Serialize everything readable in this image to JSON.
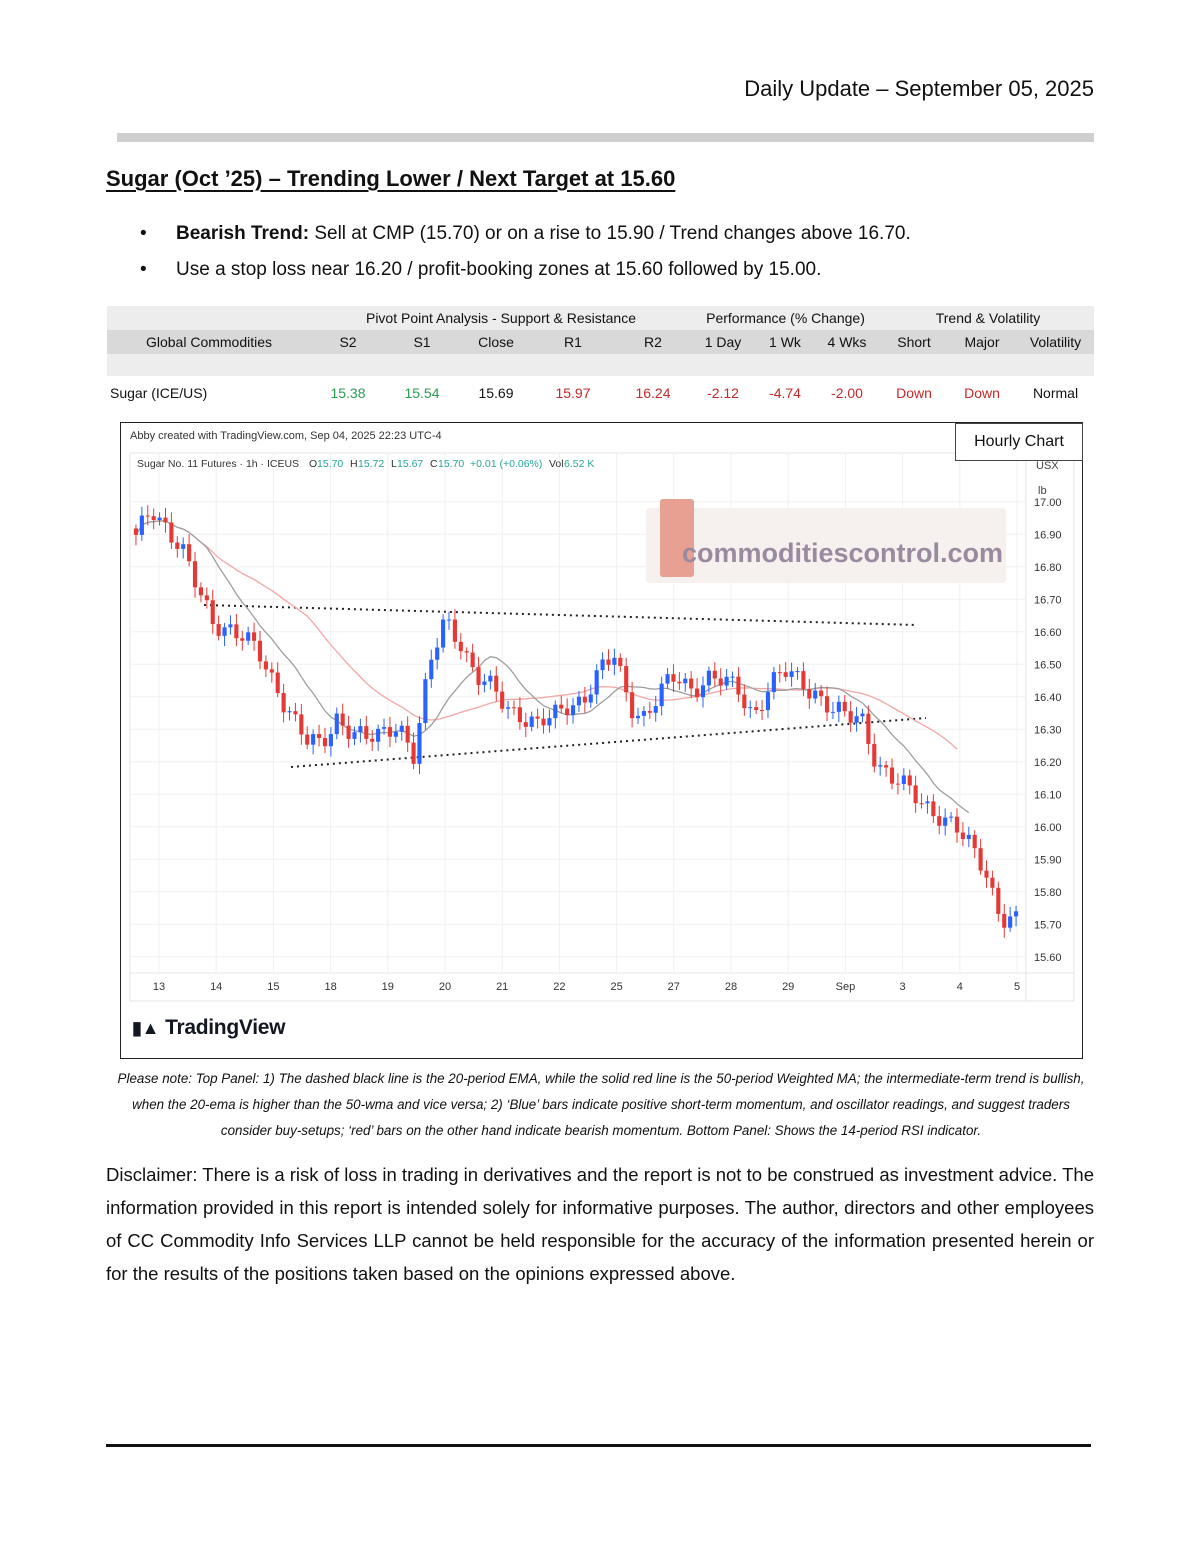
{
  "header": {
    "date": "Daily Update – September 05, 2025"
  },
  "title": "Sugar (Oct ’25) – Trending Lower / Next Target at 15.60",
  "bullets": {
    "b1_bold": "Bearish Trend:",
    "b1_text": " Sell at CMP (15.70) or on a rise to 15.90 / Trend changes above 16.70.",
    "b2_text": "Use a stop loss near 16.20 / profit-booking zones at 15.60 followed by 15.00."
  },
  "table": {
    "groups": {
      "pivot": "Pivot Point Analysis - Support & Resistance",
      "performance": "Performance (% Change)",
      "trend": "Trend & Volatility"
    },
    "headers": [
      "Global Commodities",
      "S2",
      "S1",
      "Close",
      "R1",
      "R2",
      "1 Day",
      "1 Wk",
      "4 Wks",
      "Short",
      "Major",
      "Volatility"
    ],
    "row": [
      "Sugar (ICE/US)",
      "15.38",
      "15.54",
      "15.69",
      "15.97",
      "16.24",
      "-2.12",
      "-4.74",
      "-2.00",
      "Down",
      "Down",
      "Normal"
    ]
  },
  "chart": {
    "credit": "Abby created with TradingView.com, Sep 04, 2025 22:23 UTC-4",
    "hourly_label": "Hourly Chart",
    "legend": {
      "symbol": "Sugar No. 11 Futures · 1h · ICEUS",
      "o_label": "O",
      "o_value": "15.70",
      "h_label": "H",
      "h_value": "15.72",
      "l_label": "L",
      "l_value": "15.67",
      "c_label": "C",
      "c_value": "15.70",
      "change": "+0.01 (+0.06%)",
      "vol_label": "Vol",
      "vol_value": "6.52 K"
    },
    "watermark": "commoditiescontrol.com",
    "axis_unit_1": "USX",
    "axis_unit_2": "lb",
    "brand": "TradingView",
    "colors": {
      "up": "#2962ff",
      "down": "#e53935",
      "ema": "#9e9e9e",
      "wma": "#f4a6a6"
    }
  },
  "chart_data": {
    "type": "candlestick",
    "y_ticks": [
      "17.00",
      "16.90",
      "16.80",
      "16.70",
      "16.60",
      "16.50",
      "16.40",
      "16.30",
      "16.20",
      "16.10",
      "16.00",
      "15.90",
      "15.80",
      "15.70",
      "15.60"
    ],
    "x_ticks": [
      "13",
      "14",
      "15",
      "18",
      "19",
      "20",
      "21",
      "22",
      "25",
      "27",
      "28",
      "29",
      "Sep",
      "3",
      "4",
      "5"
    ],
    "ylim": [
      15.55,
      17.15
    ],
    "close_path": [
      16.88,
      16.98,
      16.93,
      16.85,
      16.72,
      16.63,
      16.62,
      16.58,
      16.52,
      16.44,
      16.36,
      16.26,
      16.24,
      16.34,
      16.3,
      16.26,
      16.28,
      16.33,
      16.22,
      16.48,
      16.64,
      16.58,
      16.46,
      16.42,
      16.37,
      16.35,
      16.31,
      16.33,
      16.38,
      16.4,
      16.47,
      16.52,
      16.38,
      16.34,
      16.41,
      16.46,
      16.43,
      16.46,
      16.44,
      16.42,
      16.35,
      16.43,
      16.47,
      16.45,
      16.42,
      16.36,
      16.33,
      16.34,
      16.2,
      16.14,
      16.11,
      16.08,
      16.04,
      15.99,
      15.94,
      15.88,
      15.72,
      15.7
    ]
  },
  "note": "Please note: Top Panel: 1) The dashed black line is the 20-period EMA, while the solid red line is the 50-period Weighted MA; the intermediate-term trend is bullish, when the 20-ema is higher than the 50-wma and vice versa; 2) ‘Blue’ bars indicate positive short-term momentum, and oscillator readings, and suggest traders consider buy-setups; ‘red’ bars on the other hand indicate bearish momentum. Bottom Panel: Shows the 14-period RSI indicator.",
  "disclaimer": "Disclaimer: There is a risk of loss in trading in derivatives and the report is not to be construed as investment advice. The information provided in this report is intended solely for informative purposes. The author, directors and other employees of CC Commodity Info Services LLP cannot be held responsible for the accuracy of the information presented herein or for the results of the positions taken based on the opinions expressed above."
}
